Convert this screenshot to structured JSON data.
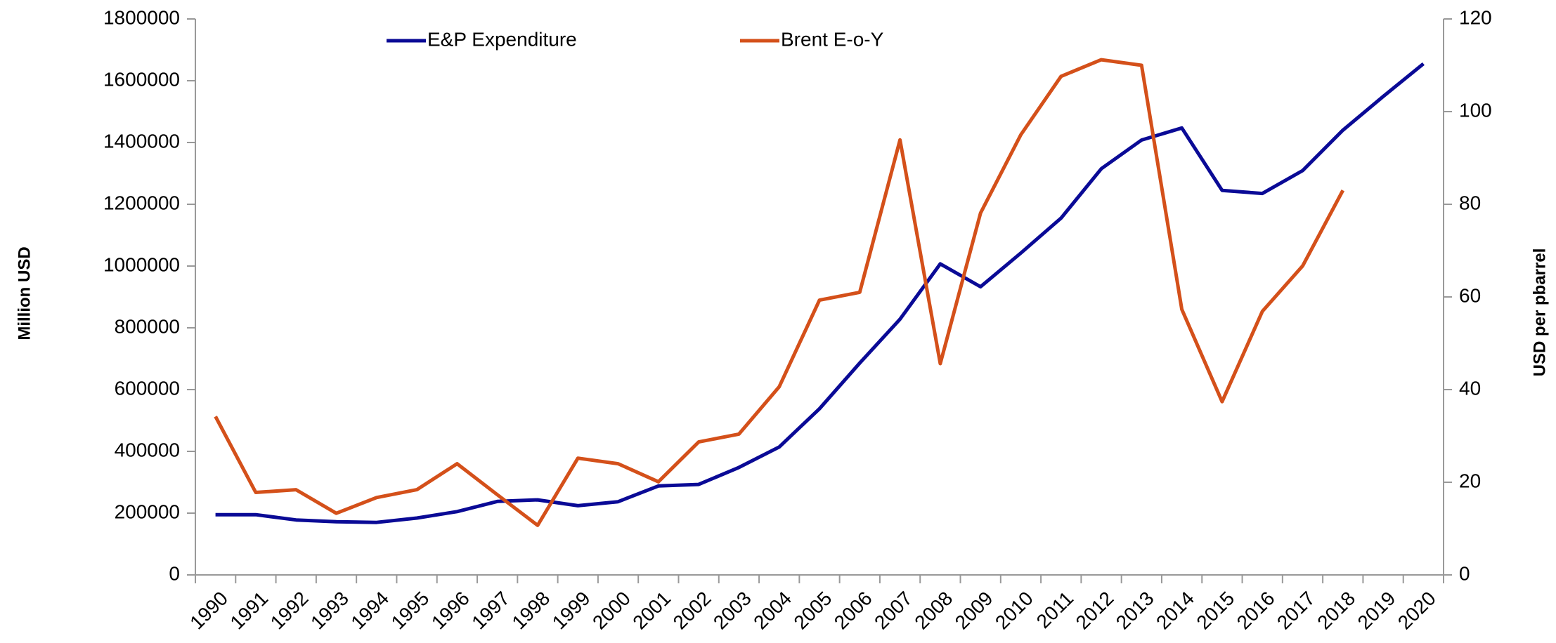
{
  "chart_data": {
    "type": "line",
    "categories": [
      "1990",
      "1991",
      "1992",
      "1993",
      "1994",
      "1995",
      "1996",
      "1997",
      "1998",
      "1999",
      "2000",
      "2001",
      "2002",
      "2003",
      "2004",
      "2005",
      "2006",
      "2007",
      "2008",
      "2009",
      "2010",
      "2011",
      "2012",
      "2013",
      "2014",
      "2015",
      "2016",
      "2017",
      "2018",
      "2019",
      "2020"
    ],
    "series": [
      {
        "name": "E&P Expenditure",
        "color": "#0a0a96",
        "axis": "y",
        "values": [
          195000,
          195000,
          178000,
          172000,
          170000,
          184000,
          205000,
          238000,
          243000,
          224000,
          237000,
          288000,
          293000,
          348000,
          414000,
          538000,
          686000,
          828000,
          1007000,
          933000,
          1042000,
          1155000,
          1315000,
          1408000,
          1447000,
          1245000,
          1235000,
          1309000,
          1440000,
          1549000,
          1655000
        ]
      },
      {
        "name": "Brent E-o-Y",
        "color": "#d4501a",
        "axis": "y2",
        "values": [
          34.2,
          17.8,
          18.4,
          13.3,
          16.7,
          18.4,
          24,
          17.3,
          10.7,
          25.2,
          24,
          20.1,
          28.7,
          30.4,
          40.6,
          59.3,
          61,
          93.9,
          45.6,
          78.1,
          95,
          107.6,
          111.2,
          110,
          57.3,
          37.4,
          56.9,
          66.7,
          83,
          null,
          null
        ]
      }
    ],
    "ylabel": "Million USD",
    "y2label": "USD per pbarrel",
    "ylim": [
      0,
      1800000
    ],
    "yticks": [
      0,
      200000,
      400000,
      600000,
      800000,
      1000000,
      1200000,
      1400000,
      1600000,
      1800000
    ],
    "y2lim": [
      0,
      120
    ],
    "y2ticks": [
      0,
      20,
      40,
      60,
      80,
      100,
      120
    ],
    "legend": "top"
  }
}
